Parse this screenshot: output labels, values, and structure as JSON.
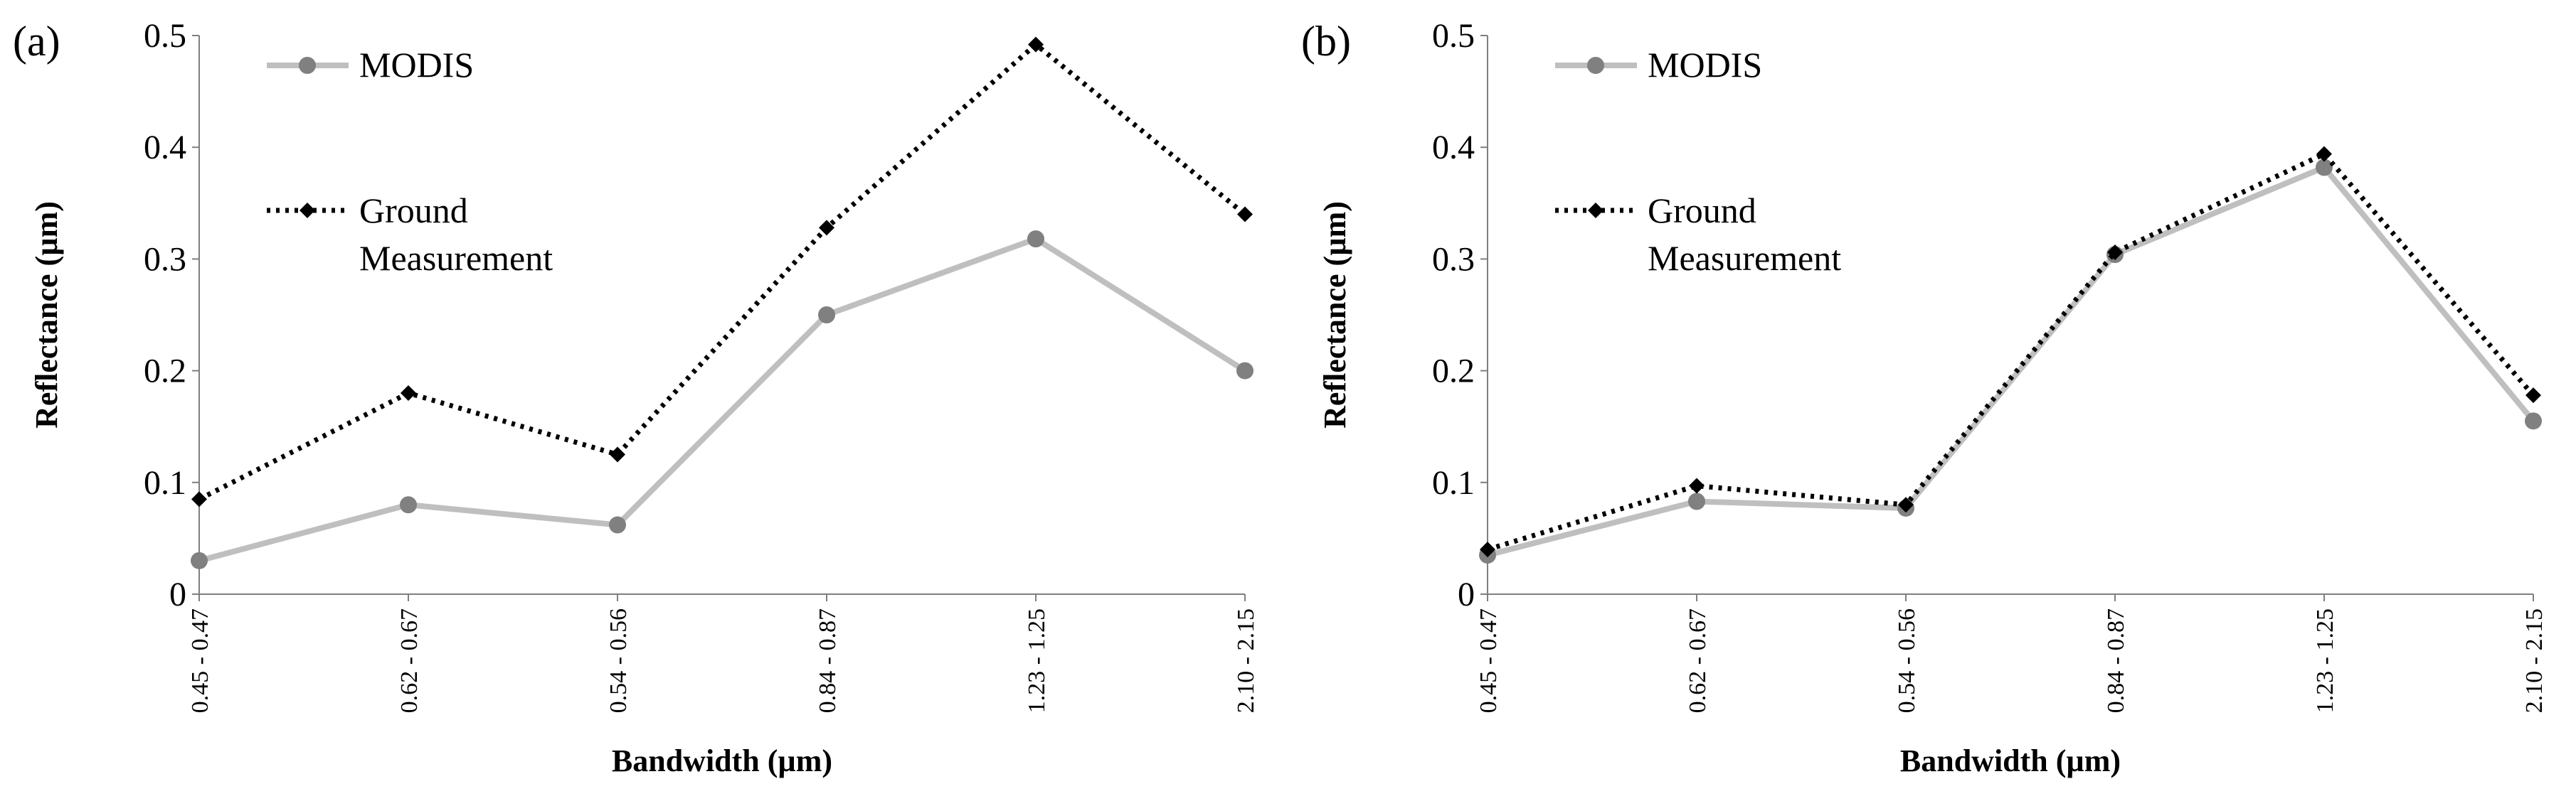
{
  "chart_data": [
    {
      "type": "line",
      "panel_label": "(a)",
      "categories": [
        "0.45 - 0.47",
        "0.62 - 0.67",
        "0.54 - 0.56",
        "0.84 - 0.87",
        "1.23 - 1.25",
        "2.10 - 2.15"
      ],
      "series": [
        {
          "name": "MODIS",
          "color": "#bfbfbf",
          "marker_color": "#808080",
          "values": [
            0.03,
            0.08,
            0.062,
            0.25,
            0.318,
            0.2
          ]
        },
        {
          "name": "Ground Measurement",
          "name_lines": [
            "Ground",
            "Measurement"
          ],
          "color": "#000000",
          "marker_color": "#000000",
          "values": [
            0.085,
            0.18,
            0.125,
            0.328,
            0.492,
            0.34
          ]
        }
      ],
      "xlabel": "Bandwidth  (µm)",
      "ylabel": "Reflectance (µm)",
      "ylim": [
        0,
        0.5
      ],
      "yticks": [
        "0",
        "0.1",
        "0.2",
        "0.3",
        "0.4",
        "0.5"
      ],
      "legend_position": "top-left"
    },
    {
      "type": "line",
      "panel_label": "(b)",
      "categories": [
        "0.45 - 0.47",
        "0.62 - 0.67",
        "0.54 - 0.56",
        "0.84 - 0.87",
        "1.23 - 1.25",
        "2.10 - 2.15"
      ],
      "series": [
        {
          "name": "MODIS",
          "color": "#bfbfbf",
          "marker_color": "#808080",
          "values": [
            0.035,
            0.083,
            0.077,
            0.304,
            0.382,
            0.155
          ]
        },
        {
          "name": "Ground Measurement",
          "name_lines": [
            "Ground",
            "Measurement"
          ],
          "color": "#000000",
          "marker_color": "#000000",
          "values": [
            0.04,
            0.097,
            0.08,
            0.306,
            0.394,
            0.178
          ]
        }
      ],
      "xlabel": "Bandwidth  (µm)",
      "ylabel": "Reflectance (µm)",
      "ylim": [
        0,
        0.5
      ],
      "yticks": [
        "0",
        "0.1",
        "0.2",
        "0.3",
        "0.4",
        "0.5"
      ],
      "legend_position": "top-left"
    }
  ]
}
